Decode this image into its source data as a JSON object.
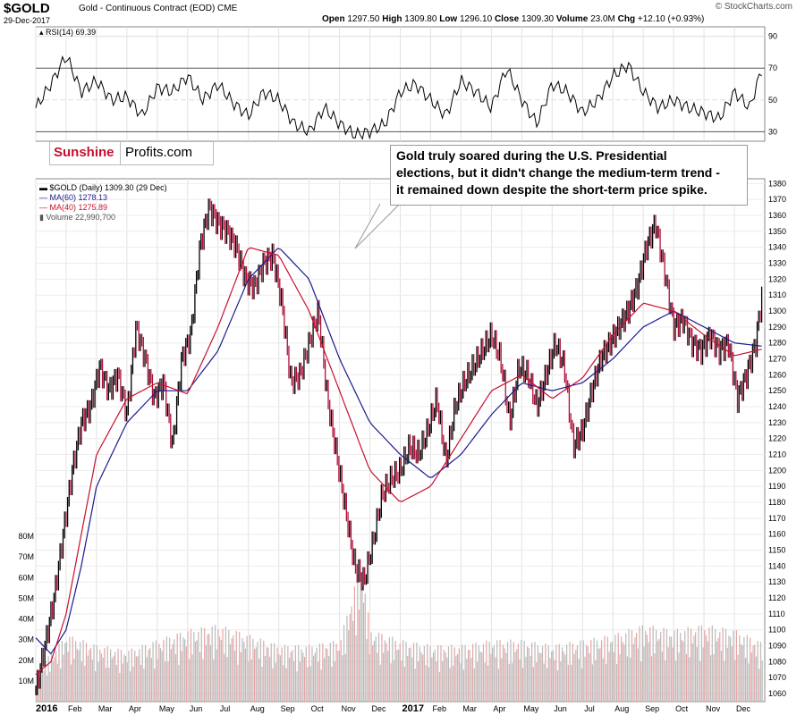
{
  "header": {
    "symbol": "$GOLD",
    "description": "Gold - Continuous Contract (EOD) CME",
    "date": "29-Dec-2017",
    "open_label": "Open",
    "open": "1297.50",
    "high_label": "High",
    "high": "1309.80",
    "low_label": "Low",
    "low": "1296.10",
    "close_label": "Close",
    "close": "1309.30",
    "volume_label": "Volume",
    "volume": "23.0M",
    "chg_label": "Chg",
    "chg": "+12.10 (+0.93%)",
    "credit": "© StockCharts.com"
  },
  "logo": {
    "part1": "Sunshine",
    "part2": "Profits.com"
  },
  "annotation": {
    "line1": "Gold truly soared during the U.S. Presidential",
    "line2": "elections, but it didn't change the medium-term trend -",
    "line3": "it remained down despite the short-term price spike."
  },
  "legend": {
    "price": "$GOLD (Daily) 1309.30 (29 Dec)",
    "ma60": "MA(60) 1278.13",
    "ma40": "MA(40) 1275.89",
    "volume": "Volume 22,990,700",
    "rsi": "RSI(14) 69.39"
  },
  "colors": {
    "price": "#000000",
    "ma60": "#1a1a8c",
    "ma40": "#c8102e",
    "volume_up": "#bbbbbb",
    "volume_down": "#e9a3a3",
    "rsi_ob": "#3a7a3a",
    "rsi_os": "#8e6060"
  },
  "chart_data": {
    "type": "line",
    "title": "$GOLD Gold - Continuous Contract (EOD) CME",
    "months": [
      "2016",
      "Feb",
      "Mar",
      "Apr",
      "May",
      "Jun",
      "Jul",
      "Aug",
      "Sep",
      "Oct",
      "Nov",
      "Dec",
      "2017",
      "Feb",
      "Mar",
      "Apr",
      "May",
      "Jun",
      "Jul",
      "Aug",
      "Sep",
      "Oct",
      "Nov",
      "Dec"
    ],
    "price_ticks": [
      1060,
      1070,
      1080,
      1090,
      1100,
      1110,
      1120,
      1130,
      1140,
      1150,
      1160,
      1170,
      1180,
      1190,
      1200,
      1210,
      1220,
      1230,
      1240,
      1250,
      1260,
      1270,
      1280,
      1290,
      1300,
      1310,
      1320,
      1330,
      1340,
      1350,
      1360,
      1370,
      1380
    ],
    "price_ylim": [
      1055,
      1383
    ],
    "volume_ticks": [
      "10M",
      "20M",
      "30M",
      "40M",
      "50M",
      "60M",
      "70M",
      "80M"
    ],
    "volume_ylim": [
      0,
      80
    ],
    "rsi_ticks": [
      30,
      50,
      70,
      90
    ],
    "rsi_ylim": [
      24,
      96
    ],
    "price_series": {
      "name": "$GOLD (Daily)",
      "month_index": [
        0,
        0.3,
        0.6,
        0.9,
        1.2,
        1.5,
        1.8,
        2.1,
        2.4,
        2.7,
        3.0,
        3.3,
        3.6,
        3.9,
        4.2,
        4.5,
        4.8,
        5.1,
        5.4,
        5.7,
        6.0,
        6.3,
        6.6,
        6.9,
        7.2,
        7.5,
        7.8,
        8.1,
        8.4,
        8.7,
        9.0,
        9.3,
        9.6,
        9.9,
        10.2,
        10.5,
        10.8,
        11.1,
        11.4,
        11.7,
        12.0,
        12.3,
        12.6,
        12.9,
        13.2,
        13.5,
        13.8,
        14.1,
        14.4,
        14.7,
        15.0,
        15.3,
        15.6,
        15.9,
        16.2,
        16.5,
        16.8,
        17.1,
        17.4,
        17.7,
        18.0,
        18.3,
        18.6,
        18.9,
        19.2,
        19.5,
        19.8,
        20.1,
        20.4,
        20.7,
        21.0,
        21.3,
        21.6,
        21.9,
        22.2,
        22.5,
        22.8,
        23.1,
        23.4,
        23.7,
        23.9
      ],
      "values": [
        1062,
        1090,
        1120,
        1160,
        1200,
        1230,
        1240,
        1265,
        1250,
        1260,
        1235,
        1290,
        1270,
        1245,
        1255,
        1215,
        1270,
        1285,
        1340,
        1365,
        1355,
        1350,
        1340,
        1320,
        1315,
        1330,
        1335,
        1305,
        1255,
        1260,
        1280,
        1300,
        1245,
        1210,
        1175,
        1140,
        1130,
        1155,
        1185,
        1195,
        1200,
        1215,
        1210,
        1225,
        1245,
        1205,
        1240,
        1255,
        1265,
        1275,
        1285,
        1270,
        1230,
        1265,
        1260,
        1240,
        1260,
        1280,
        1265,
        1215,
        1225,
        1250,
        1270,
        1280,
        1290,
        1300,
        1315,
        1340,
        1355,
        1325,
        1290,
        1295,
        1280,
        1275,
        1285,
        1275,
        1280,
        1245,
        1260,
        1280,
        1309
      ]
    },
    "ma60_series": {
      "name": "MA(60)",
      "last": 1278.13,
      "month_index": [
        0,
        0.5,
        1,
        1.5,
        2,
        3,
        4,
        5,
        6,
        7,
        8,
        9,
        10,
        11,
        12,
        13,
        14,
        15,
        16,
        17,
        18,
        19,
        20,
        21,
        22,
        23,
        23.9
      ],
      "values": [
        1095,
        1085,
        1100,
        1140,
        1190,
        1230,
        1250,
        1250,
        1275,
        1320,
        1340,
        1320,
        1270,
        1230,
        1210,
        1195,
        1210,
        1235,
        1255,
        1250,
        1255,
        1270,
        1290,
        1300,
        1290,
        1280,
        1278
      ]
    },
    "ma40_series": {
      "name": "MA(40)",
      "last": 1275.89,
      "month_index": [
        0,
        0.5,
        1,
        1.5,
        2,
        3,
        4,
        5,
        6,
        7,
        8,
        9,
        10,
        11,
        12,
        13,
        14,
        15,
        16,
        17,
        18,
        19,
        20,
        21,
        22,
        23,
        23.9
      ],
      "values": [
        1072,
        1080,
        1110,
        1160,
        1210,
        1245,
        1255,
        1248,
        1290,
        1340,
        1335,
        1300,
        1250,
        1200,
        1180,
        1190,
        1220,
        1250,
        1260,
        1245,
        1258,
        1285,
        1305,
        1300,
        1285,
        1272,
        1276
      ]
    },
    "volume_series": {
      "name": "Volume",
      "unit": "M",
      "month_index": [
        0,
        1,
        2,
        3,
        4,
        5,
        6,
        7,
        8,
        9,
        10,
        10.7,
        11,
        12,
        13,
        14,
        15,
        16,
        17,
        18,
        19,
        20,
        21,
        22,
        23,
        23.9
      ],
      "values": [
        12,
        26,
        22,
        20,
        24,
        28,
        30,
        26,
        22,
        22,
        24,
        55,
        28,
        24,
        22,
        22,
        24,
        24,
        22,
        24,
        26,
        30,
        28,
        30,
        28,
        23
      ]
    },
    "rsi_series": {
      "name": "RSI(14)",
      "last": 69.39,
      "month_index": [
        0,
        0.5,
        1,
        1.5,
        2,
        2.5,
        3,
        3.5,
        4,
        4.5,
        5,
        5.5,
        6,
        6.5,
        7,
        7.5,
        8,
        8.5,
        9,
        9.5,
        10,
        10.5,
        11,
        11.5,
        12,
        12.5,
        13,
        13.5,
        14,
        14.5,
        15,
        15.5,
        16,
        16.5,
        17,
        17.5,
        18,
        18.5,
        19,
        19.5,
        20,
        20.5,
        21,
        21.5,
        22,
        22.5,
        23,
        23.5,
        23.9
      ],
      "values": [
        45,
        60,
        78,
        55,
        62,
        50,
        52,
        40,
        58,
        55,
        65,
        50,
        60,
        48,
        40,
        55,
        50,
        35,
        30,
        45,
        35,
        28,
        30,
        35,
        55,
        60,
        50,
        40,
        62,
        55,
        45,
        70,
        50,
        35,
        60,
        55,
        42,
        50,
        65,
        72,
        55,
        45,
        50,
        45,
        42,
        38,
        55,
        45,
        69
      ]
    }
  }
}
